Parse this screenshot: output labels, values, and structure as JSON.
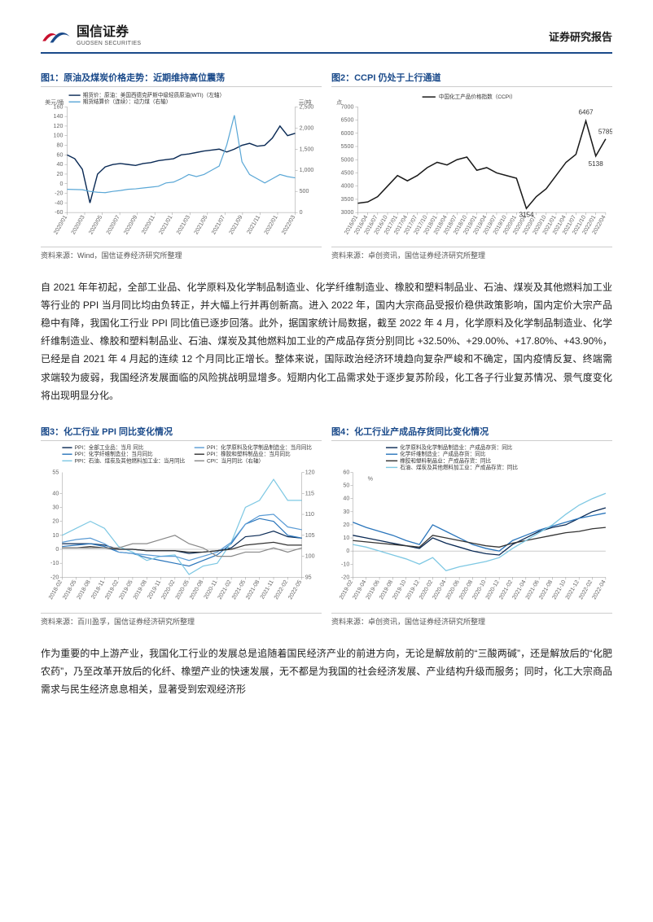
{
  "header": {
    "company_cn": "国信证券",
    "company_en": "GUOSEN SECURITIES",
    "report_type": "证券研究报告",
    "logo_colors": {
      "red": "#c8102e",
      "blue": "#1a4a8a"
    }
  },
  "body_paragraph_1": "自 2021 年年初起，全部工业品、化学原料及化学制品制造业、化学纤维制造业、橡胶和塑料制品业、石油、煤炭及其他燃料加工业等行业的 PPI 当月同比均由负转正，并大幅上行并再创新高。进入 2022 年，国内大宗商品受报价稳供政策影响，国内定价大宗产品稳中有降，我国化工行业 PPI 同比值已逐步回落。此外，据国家统计局数据，截至 2022 年 4 月，化学原料及化学制品制造业、化学纤维制造业、橡胶和塑料制品业、石油、煤炭及其他燃料加工业的产成品存货分别同比 +32.50%、+29.00%、+17.80%、+43.90%，已经是自 2021 年 4 月起的连续 12 个月同比正增长。整体来说，国际政治经济环境趋向复杂严峻和不确定，国内疫情反复、终端需求端较为疲弱，我国经济发展面临的风险挑战明显增多。短期内化工品需求处于逐步复苏阶段，化工各子行业复苏情况、景气度变化将出现明显分化。",
  "body_paragraph_2": "作为重要的中上游产业，我国化工行业的发展总是追随着国民经济产业的前进方向，无论是解放前的“三酸两碱”，还是解放后的“化肥农药”，乃至改革开放后的化纤、橡塑产业的快速发展，无不都是为我国的社会经济发展、产业结构升级而服务；同时，化工大宗商品需求与民生经济息息相关，显著受到宏观经济形",
  "fig1": {
    "title": "图1：原油及煤炭价格走势：近期维持高位震荡",
    "source": "资料来源：Wind，国信证券经济研究所整理",
    "y_left_label": "美元/桶",
    "y_right_label": "元/吨",
    "y_left": {
      "min": -60,
      "max": 160,
      "step": 20
    },
    "y_right": {
      "min": 0,
      "max": 2500,
      "step": 500
    },
    "x_ticks": [
      "2020/01",
      "2020/03",
      "2020/05",
      "2020/07",
      "2020/09",
      "2020/11",
      "2021/01",
      "2021/03",
      "2021/05",
      "2021/07",
      "2021/09",
      "2021/11",
      "2022/01",
      "2022/03"
    ],
    "legend": [
      {
        "label": "期货价：原油：美国西德克萨斯中级轻质原油(WTI)（左轴）",
        "color": "#0a2a55"
      },
      {
        "label": "期货结算价（连续）：动力煤（右轴）",
        "color": "#5aa7d6"
      }
    ],
    "series_wti": [
      60,
      52,
      30,
      -40,
      20,
      35,
      40,
      42,
      40,
      38,
      42,
      44,
      48,
      50,
      52,
      60,
      62,
      65,
      68,
      70,
      72,
      66,
      72,
      80,
      84,
      78,
      80,
      95,
      120,
      100,
      105
    ],
    "series_coal": [
      550,
      545,
      540,
      500,
      480,
      470,
      500,
      520,
      550,
      560,
      580,
      600,
      620,
      700,
      720,
      800,
      900,
      850,
      900,
      1000,
      1100,
      1600,
      2300,
      1200,
      900,
      800,
      700,
      800,
      900,
      850,
      820
    ],
    "line_colors": {
      "wti": "#0a2a55",
      "coal": "#5aa7d6"
    }
  },
  "fig2": {
    "title": "图2：CCPI 仍处于上行通道",
    "source": "资料来源：卓创资讯，国信证券经济研究所整理",
    "y_label": "点",
    "y": {
      "min": 3000,
      "max": 7000,
      "step": 500
    },
    "x_ticks": [
      "2016/01",
      "2016/04",
      "2016/07",
      "2016/10",
      "2017/01",
      "2017/04",
      "2017/07",
      "2017/10",
      "2018/01",
      "2018/04",
      "2018/07",
      "2018/10",
      "2019/01",
      "2019/04",
      "2019/07",
      "2019/10",
      "2020/01",
      "2020/04",
      "2020/07",
      "2020/10",
      "2021/01",
      "2021/04",
      "2021/07",
      "2021/10",
      "2022/01",
      "2022/04"
    ],
    "legend": [
      {
        "label": "中国化工产品价格指数（CCPI）",
        "color": "#1a1a1a"
      }
    ],
    "series": [
      3350,
      3400,
      3600,
      4000,
      4400,
      4200,
      4400,
      4700,
      4900,
      4800,
      5000,
      5100,
      4600,
      4700,
      4500,
      4400,
      4300,
      3154,
      3600,
      3900,
      4400,
      4900,
      5200,
      6467,
      5138,
      5785
    ],
    "annotations": [
      {
        "label": "3154",
        "idx": 17,
        "dy": 10
      },
      {
        "label": "6467",
        "idx": 23,
        "dy": -8
      },
      {
        "label": "5138",
        "idx": 24,
        "dy": 12
      },
      {
        "label": "5785",
        "idx": 25,
        "dy": -6
      }
    ],
    "line_color": "#1a1a1a"
  },
  "fig3": {
    "title": "图3：化工行业 PPI 同比变化情况",
    "source": "资料来源：百川盈孚，国信证券经济研究所整理",
    "y_left": {
      "min": -20,
      "max": 40,
      "step": 10,
      "extra_top": 55
    },
    "y_right": {
      "min": 95,
      "max": 120,
      "step": 5
    },
    "x_ticks": [
      "2018-02",
      "2018-05",
      "2018-08",
      "2018-11",
      "2019-02",
      "2019-05",
      "2019-08",
      "2019-11",
      "2020-02",
      "2020-05",
      "2020-08",
      "2020-11",
      "2021-02",
      "2021-05",
      "2021-08",
      "2021-11",
      "2022-02",
      "2022-05"
    ],
    "legend_left": [
      {
        "label": "PPI：全部工业品：当月 同比",
        "color": "#0a2a55"
      },
      {
        "label": "PPI：化学纤维制造业：当月同比",
        "color": "#2a75bb"
      },
      {
        "label": "PPI：石油、煤炭及其他燃料加工业：当月同比",
        "color": "#7ec8e3"
      }
    ],
    "legend_right": [
      {
        "label": "PPI：化学原料及化学制品制造业：当月同比",
        "color": "#5a9bd5"
      },
      {
        "label": "PPI：橡胶和塑料制品业：当月同比",
        "color": "#333333"
      },
      {
        "label": "CPI：当月同比（右轴）",
        "color": "#888888"
      }
    ],
    "series": {
      "s1": {
        "color": "#0a2a55",
        "vals": [
          4,
          4,
          4,
          3,
          0,
          0,
          -1,
          -1,
          -1,
          -3,
          -2,
          -1,
          1,
          9,
          10,
          13,
          9,
          8
        ]
      },
      "s2": {
        "color": "#2a75bb",
        "vals": [
          2,
          3,
          4,
          2,
          -2,
          -3,
          -6,
          -8,
          -10,
          -12,
          -8,
          -4,
          4,
          18,
          22,
          20,
          10,
          8
        ]
      },
      "s3": {
        "color": "#7ec8e3",
        "vals": [
          10,
          15,
          20,
          15,
          2,
          -2,
          -8,
          -5,
          -4,
          -18,
          -12,
          -10,
          5,
          30,
          35,
          50,
          35,
          35
        ]
      },
      "s4": {
        "color": "#5a9bd5",
        "vals": [
          5,
          7,
          8,
          4,
          -2,
          -3,
          -4,
          -5,
          -5,
          -8,
          -5,
          -2,
          5,
          18,
          24,
          25,
          16,
          14
        ]
      },
      "s5": {
        "color": "#333333",
        "vals": [
          1,
          1,
          2,
          1,
          0,
          0,
          -1,
          -1,
          -1,
          -2,
          -2,
          -1,
          0,
          3,
          4,
          5,
          3,
          3
        ]
      },
      "cpi": {
        "color": "#888888",
        "vals": [
          102,
          102,
          102,
          102,
          102,
          103,
          103,
          104,
          105,
          103,
          102,
          100,
          100,
          101,
          101,
          102,
          101,
          102
        ],
        "right_axis": true
      }
    }
  },
  "fig4": {
    "title": "图4：化工行业产成品存货同比变化情况",
    "source": "资料来源：卓创资讯，国信证券经济研究所整理",
    "y": {
      "min": -20,
      "max": 60,
      "step": 10
    },
    "y_label": "%",
    "x_ticks": [
      "2019-02",
      "2019-04",
      "2019-06",
      "2019-08",
      "2019-10",
      "2019-12",
      "2020-02",
      "2020-04",
      "2020-06",
      "2020-08",
      "2020-10",
      "2020-12",
      "2021-02",
      "2021-04",
      "2021-06",
      "2021-08",
      "2021-10",
      "2021-12",
      "2022-02",
      "2022-04"
    ],
    "legend": [
      {
        "label": "化学原料及化学制品制造业：产成品存货：同比",
        "color": "#0a2a55"
      },
      {
        "label": "化学纤维制造业：产成品存货：同比",
        "color": "#2a75bb"
      },
      {
        "label": "橡胶和塑料制品业：产成品存货：同比",
        "color": "#333333"
      },
      {
        "label": "石油、煤炭及其他燃料加工业：产成品存货：同比",
        "color": "#7ec8e3"
      }
    ],
    "series": {
      "s1": {
        "color": "#0a2a55",
        "vals": [
          12,
          10,
          8,
          6,
          4,
          2,
          10,
          6,
          3,
          0,
          -2,
          -3,
          5,
          10,
          15,
          18,
          20,
          25,
          30,
          33
        ]
      },
      "s2": {
        "color": "#2a75bb",
        "vals": [
          22,
          18,
          15,
          12,
          8,
          5,
          20,
          15,
          10,
          5,
          2,
          0,
          8,
          12,
          16,
          19,
          22,
          25,
          27,
          29
        ]
      },
      "s3": {
        "color": "#333333",
        "vals": [
          8,
          7,
          6,
          5,
          4,
          3,
          12,
          10,
          8,
          6,
          4,
          3,
          6,
          8,
          10,
          12,
          14,
          15,
          17,
          18
        ]
      },
      "s4": {
        "color": "#7ec8e3",
        "vals": [
          5,
          3,
          0,
          -3,
          -6,
          -10,
          -5,
          -15,
          -12,
          -10,
          -8,
          -5,
          2,
          8,
          14,
          20,
          28,
          35,
          40,
          44
        ]
      }
    }
  }
}
